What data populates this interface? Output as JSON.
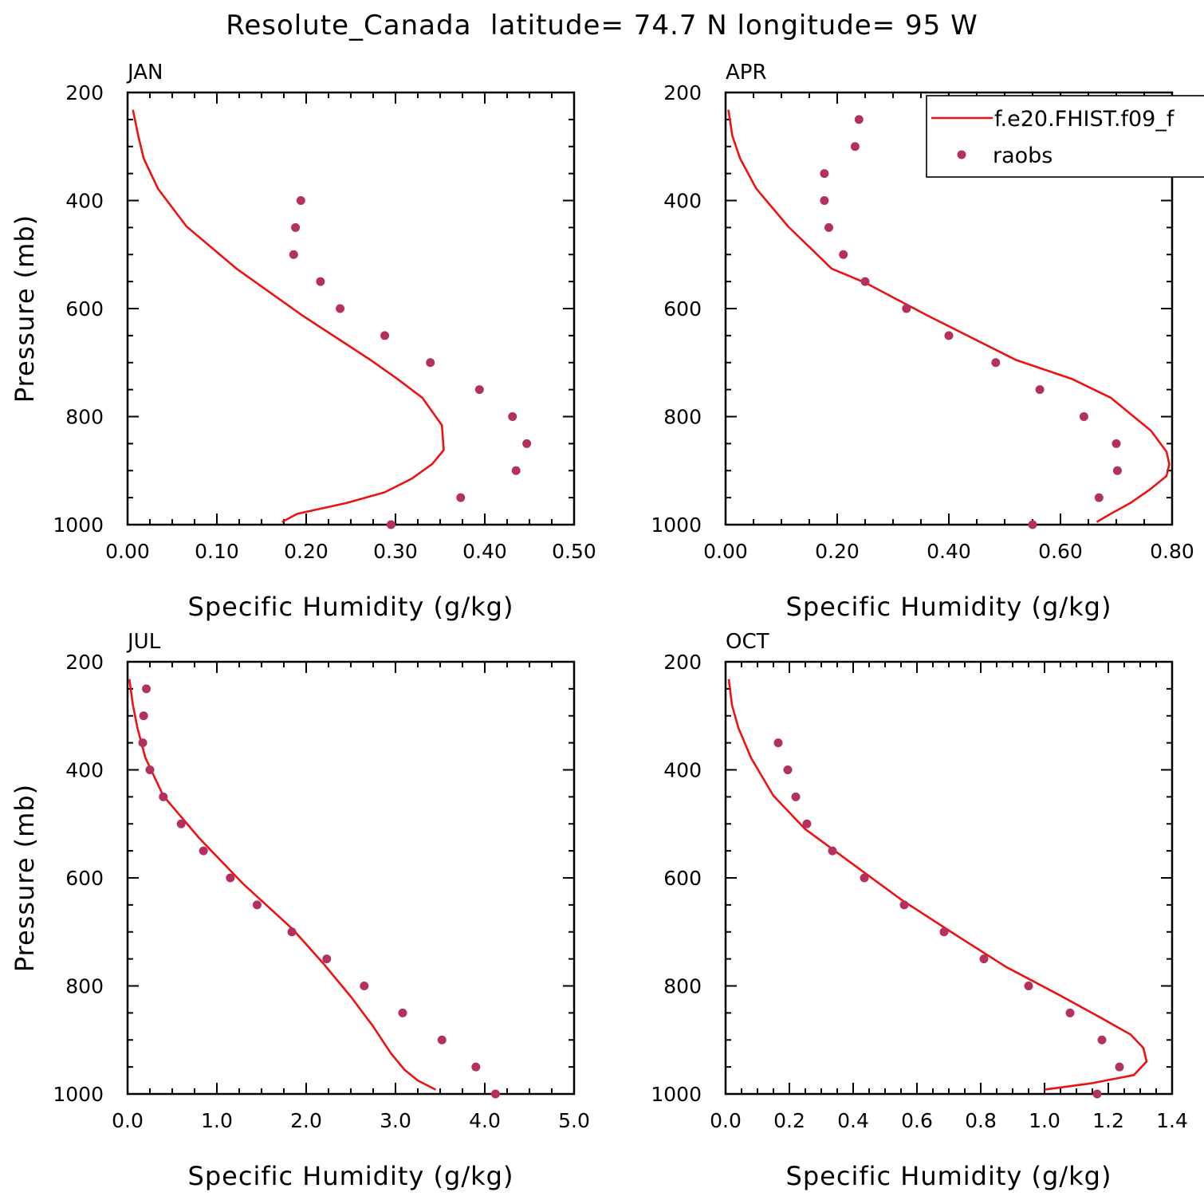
{
  "page_title": "Resolute_Canada  latitude= 74.7 N longitude= 95 W",
  "colors": {
    "model": "#ee1111",
    "obs": "#b33060",
    "axes": "#000000",
    "background": "#ffffff"
  },
  "legend": {
    "placement": "top-right of APR panel",
    "model_label": "f.e20.FHIST.f09_f",
    "obs_label": "raobs"
  },
  "chart_data": [
    {
      "type": "line+scatter",
      "panel_label": "JAN",
      "xlabel": "Specific Humidity (g/kg)",
      "ylabel": "Pressure (mb)",
      "xlim": [
        0,
        0.5
      ],
      "ylim": [
        1000,
        200
      ],
      "y_reversed": true,
      "xticks": [
        0,
        0.1,
        0.2,
        0.3,
        0.4,
        0.5
      ],
      "xtick_labels": [
        "0.00",
        "0.10",
        "0.20",
        "0.30",
        "0.40",
        "0.50"
      ],
      "xminor": 0.025,
      "yticks": [
        200,
        400,
        600,
        800,
        1000
      ],
      "ytick_labels": [
        "200",
        "400",
        "600",
        "800",
        "1000"
      ],
      "yminor": 50,
      "model": {
        "name": "f.e20.FHIST.f09_f",
        "x": [
          0.006,
          0.012,
          0.018,
          0.034,
          0.066,
          0.122,
          0.195,
          0.272,
          0.302,
          0.33,
          0.352,
          0.354,
          0.341,
          0.318,
          0.288,
          0.245,
          0.19,
          0.173
        ],
        "y": [
          232,
          280,
          322,
          378,
          448,
          526,
          612,
          695,
          730,
          765,
          816,
          862,
          888,
          915,
          940,
          960,
          980,
          995
        ]
      },
      "obs": {
        "name": "raobs",
        "x": [
          0.194,
          0.188,
          0.186,
          0.216,
          0.238,
          0.288,
          0.339,
          0.394,
          0.431,
          0.447,
          0.435,
          0.373,
          0.295
        ],
        "y": [
          400,
          450,
          500,
          550,
          600,
          650,
          700,
          750,
          800,
          850,
          900,
          950,
          1000
        ]
      }
    },
    {
      "type": "line+scatter",
      "panel_label": "APR",
      "xlabel": "Specific Humidity (g/kg)",
      "ylabel": "",
      "xlim": [
        0,
        0.8
      ],
      "ylim": [
        1000,
        200
      ],
      "y_reversed": true,
      "xticks": [
        0,
        0.2,
        0.4,
        0.6,
        0.8
      ],
      "xtick_labels": [
        "0.00",
        "0.20",
        "0.40",
        "0.60",
        "0.80"
      ],
      "xminor": 0.05,
      "yticks": [
        200,
        400,
        600,
        800,
        1000
      ],
      "ytick_labels": [
        "200",
        "400",
        "600",
        "800",
        "1000"
      ],
      "yminor": 50,
      "model": {
        "name": "f.e20.FHIST.f09_f",
        "x": [
          0.005,
          0.012,
          0.026,
          0.055,
          0.112,
          0.19,
          0.25,
          0.36,
          0.52,
          0.62,
          0.69,
          0.762,
          0.79,
          0.795,
          0.79,
          0.76,
          0.725,
          0.69,
          0.665
        ],
        "y": [
          232,
          280,
          322,
          378,
          448,
          526,
          552,
          612,
          695,
          730,
          765,
          826,
          865,
          888,
          910,
          935,
          960,
          980,
          995
        ]
      },
      "obs": {
        "name": "raobs",
        "x": [
          0.239,
          0.232,
          0.177,
          0.177,
          0.185,
          0.211,
          0.25,
          0.324,
          0.4,
          0.484,
          0.563,
          0.642,
          0.7,
          0.702,
          0.669,
          0.55
        ],
        "y": [
          250,
          300,
          350,
          400,
          450,
          500,
          550,
          600,
          650,
          700,
          750,
          800,
          850,
          900,
          950,
          1000
        ]
      }
    },
    {
      "type": "line+scatter",
      "panel_label": "JUL",
      "xlabel": "Specific Humidity (g/kg)",
      "ylabel": "Pressure (mb)",
      "xlim": [
        0,
        5
      ],
      "ylim": [
        1000,
        200
      ],
      "y_reversed": true,
      "xticks": [
        0,
        1,
        2,
        3,
        4,
        5
      ],
      "xtick_labels": [
        "0.0",
        "1.0",
        "2.0",
        "3.0",
        "4.0",
        "5.0"
      ],
      "xminor": 0.25,
      "yticks": [
        200,
        400,
        600,
        800,
        1000
      ],
      "ytick_labels": [
        "200",
        "400",
        "600",
        "800",
        "1000"
      ],
      "yminor": 50,
      "model": {
        "name": "f.e20.FHIST.f09_f",
        "x": [
          0.02,
          0.06,
          0.11,
          0.2,
          0.4,
          0.8,
          1.3,
          1.85,
          2.2,
          2.5,
          2.75,
          2.85,
          2.95,
          3.1,
          3.25,
          3.45
        ],
        "y": [
          232,
          280,
          322,
          378,
          448,
          526,
          612,
          695,
          760,
          820,
          875,
          900,
          925,
          955,
          975,
          992
        ]
      },
      "obs": {
        "name": "raobs",
        "x": [
          0.21,
          0.18,
          0.17,
          0.25,
          0.4,
          0.6,
          0.85,
          1.15,
          1.45,
          1.84,
          2.23,
          2.65,
          3.08,
          3.52,
          3.9,
          4.12
        ],
        "y": [
          250,
          300,
          350,
          400,
          450,
          500,
          550,
          600,
          650,
          700,
          750,
          800,
          850,
          900,
          950,
          1000
        ]
      }
    },
    {
      "type": "line+scatter",
      "panel_label": "OCT",
      "xlabel": "Specific Humidity (g/kg)",
      "ylabel": "",
      "xlim": [
        0,
        1.4
      ],
      "ylim": [
        1000,
        200
      ],
      "y_reversed": true,
      "xticks": [
        0,
        0.2,
        0.4,
        0.6,
        0.8,
        1.0,
        1.2,
        1.4
      ],
      "xtick_labels": [
        "0.0",
        "0.2",
        "0.4",
        "0.6",
        "0.8",
        "1.0",
        "1.2",
        "1.4"
      ],
      "xminor": 0.05,
      "yticks": [
        200,
        400,
        600,
        800,
        1000
      ],
      "ytick_labels": [
        "200",
        "400",
        "600",
        "800",
        "1000"
      ],
      "yminor": 50,
      "model": {
        "name": "f.e20.FHIST.f09_f",
        "x": [
          0.01,
          0.02,
          0.04,
          0.08,
          0.15,
          0.25,
          0.4,
          0.55,
          0.72,
          0.88,
          1.05,
          1.18,
          1.27,
          1.31,
          1.32,
          1.28,
          1.15,
          1.0
        ],
        "y": [
          232,
          280,
          322,
          378,
          448,
          510,
          575,
          640,
          705,
          765,
          818,
          860,
          890,
          915,
          940,
          965,
          980,
          992
        ]
      },
      "obs": {
        "name": "raobs",
        "x": [
          0.165,
          0.195,
          0.22,
          0.255,
          0.335,
          0.435,
          0.56,
          0.685,
          0.81,
          0.95,
          1.08,
          1.18,
          1.235,
          1.165
        ],
        "y": [
          350,
          400,
          450,
          500,
          550,
          600,
          650,
          700,
          750,
          800,
          850,
          900,
          950,
          1000
        ]
      }
    }
  ]
}
